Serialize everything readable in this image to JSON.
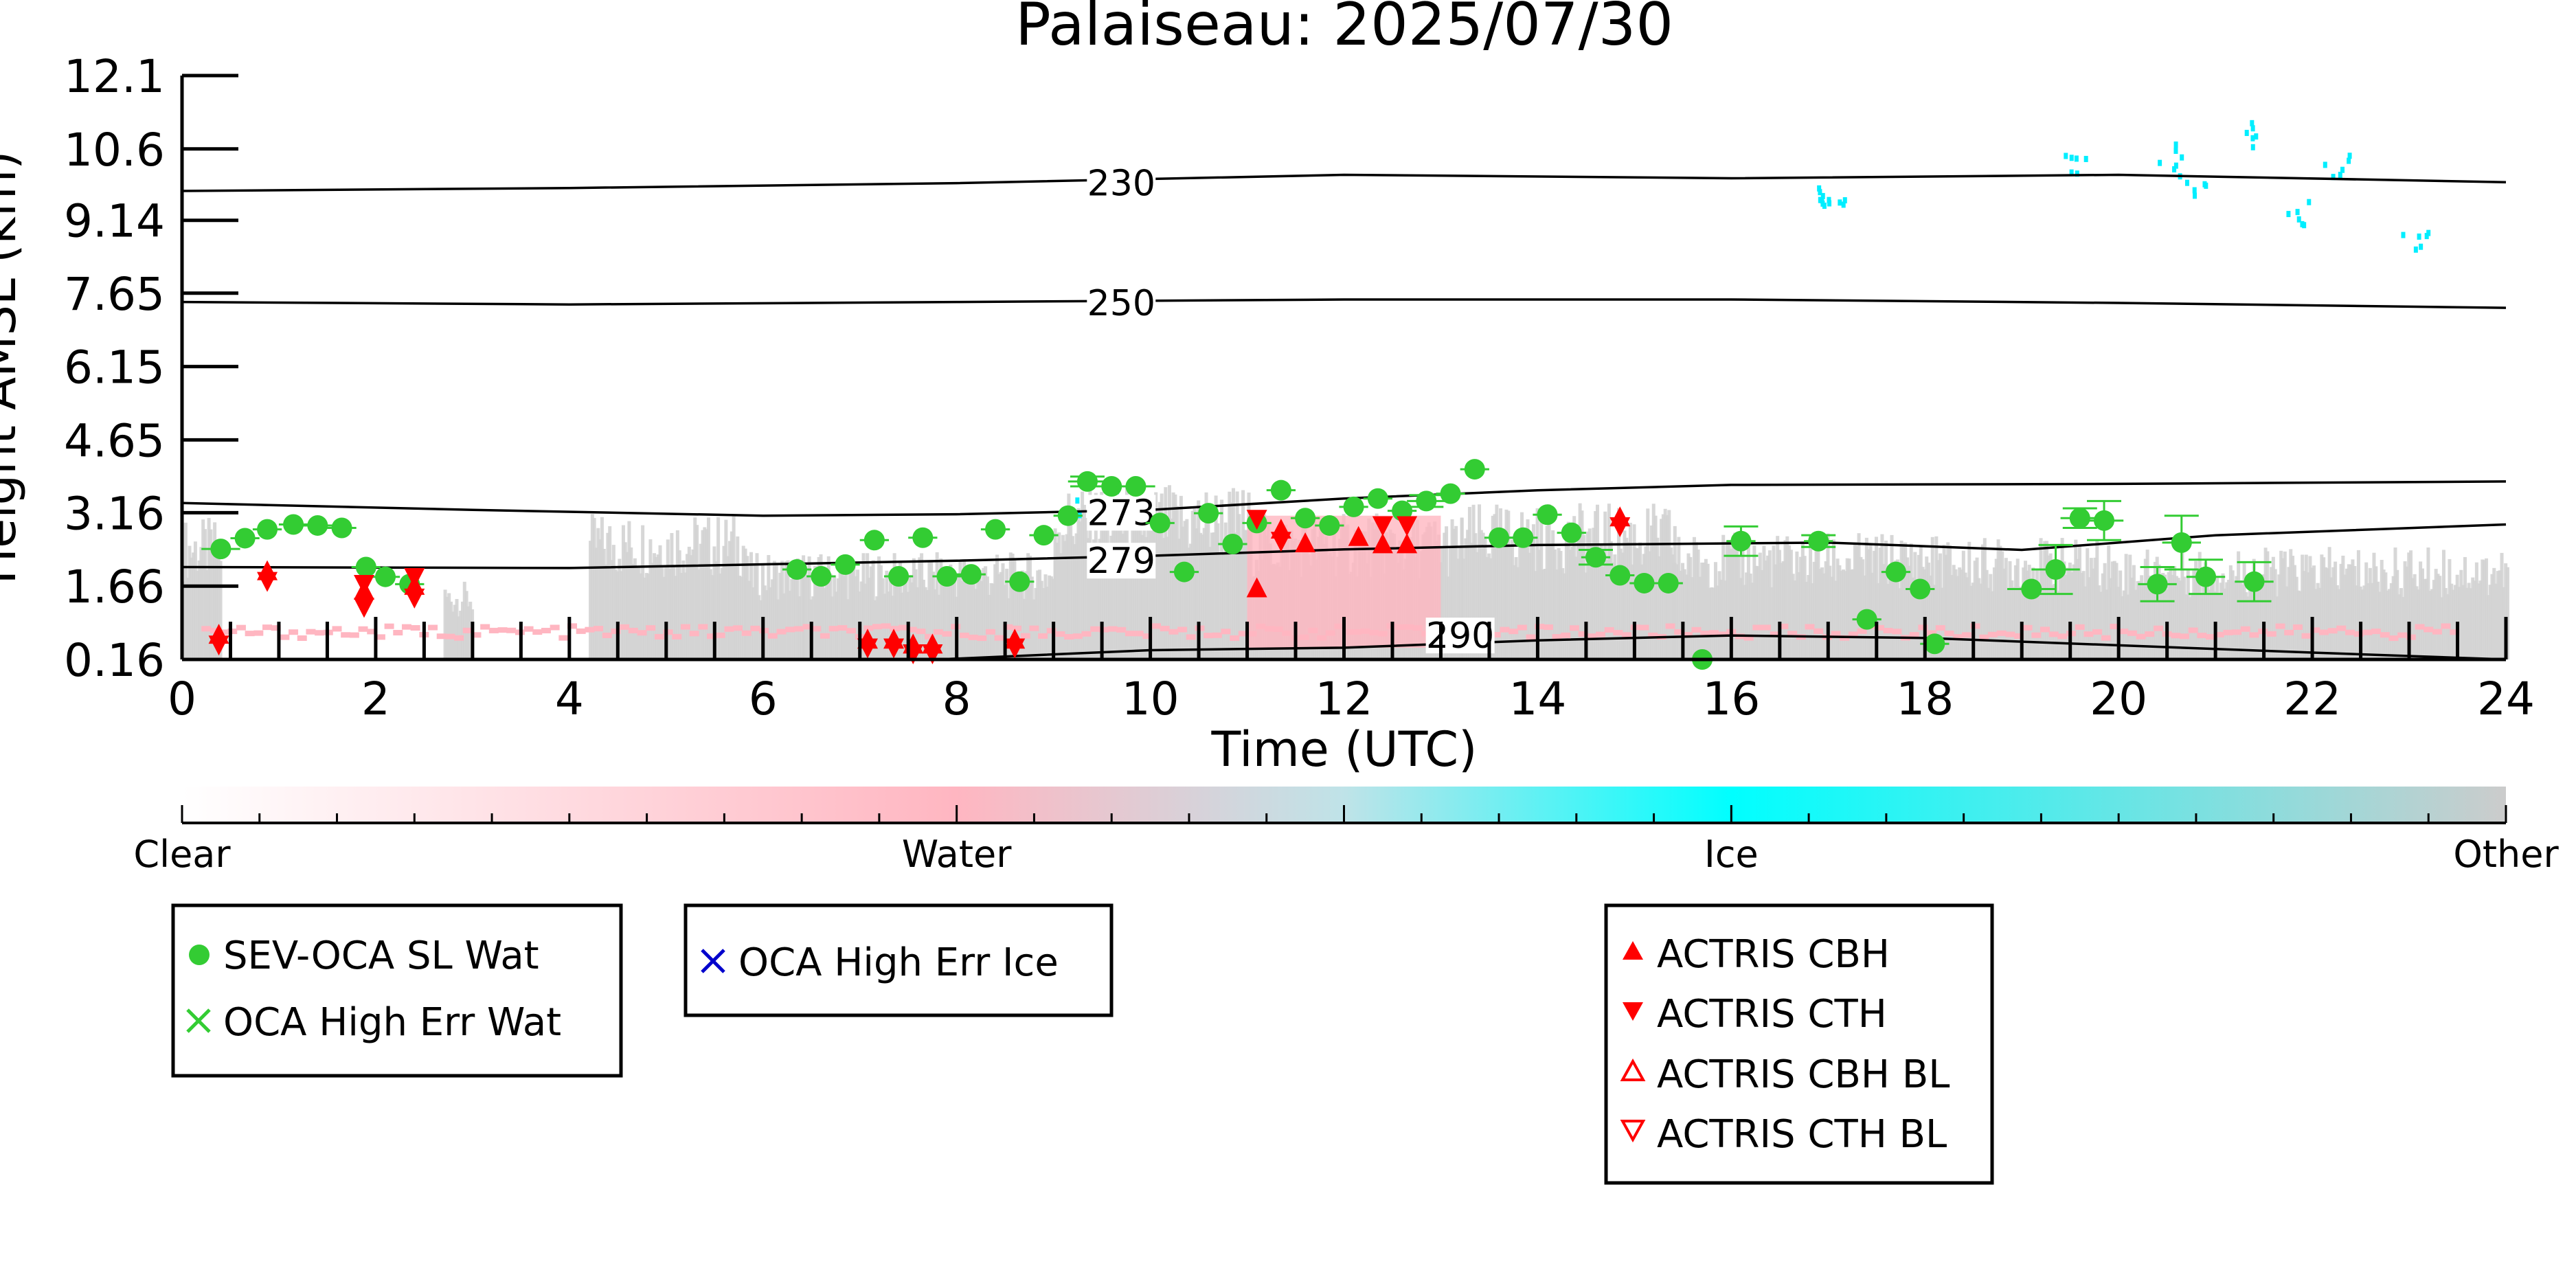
{
  "chart_data": {
    "type": "scatter",
    "title": "Palaiseau: 2025/07/30",
    "xlabel": "Time (UTC)",
    "ylabel": "Height AMSL (km)",
    "xlim": [
      0,
      24
    ],
    "ylim": [
      0.16,
      12.1
    ],
    "x_ticks": [
      "0",
      "2",
      "4",
      "6",
      "8",
      "10",
      "12",
      "14",
      "16",
      "18",
      "20",
      "22",
      "24"
    ],
    "y_ticks": [
      "0.16",
      "1.66",
      "3.16",
      "4.65",
      "6.15",
      "7.65",
      "9.14",
      "10.6",
      "12.1"
    ],
    "y_tick_values": [
      0.16,
      1.66,
      3.16,
      4.65,
      6.15,
      7.65,
      9.14,
      10.6,
      12.1
    ],
    "colorbar": {
      "labels": [
        "Clear",
        "Water",
        "Ice",
        "Other"
      ],
      "colors": [
        "#ffffff",
        "#ffb6c1",
        "#00ffff",
        "#cccccc"
      ]
    },
    "isotherms": [
      {
        "label": "230",
        "points": [
          [
            0,
            9.74
          ],
          [
            4,
            9.8
          ],
          [
            8,
            9.9
          ],
          [
            12,
            10.07
          ],
          [
            16,
            10.0
          ],
          [
            20,
            10.07
          ],
          [
            24,
            9.92
          ]
        ]
      },
      {
        "label": "250",
        "points": [
          [
            0,
            7.47
          ],
          [
            4,
            7.42
          ],
          [
            8,
            7.47
          ],
          [
            12,
            7.52
          ],
          [
            16,
            7.52
          ],
          [
            20,
            7.45
          ],
          [
            24,
            7.35
          ]
        ]
      },
      {
        "label": "273",
        "points": [
          [
            0,
            3.36
          ],
          [
            3,
            3.22
          ],
          [
            6,
            3.1
          ],
          [
            8,
            3.13
          ],
          [
            10,
            3.22
          ],
          [
            12,
            3.45
          ],
          [
            14,
            3.62
          ],
          [
            16,
            3.73
          ],
          [
            20,
            3.75
          ],
          [
            24,
            3.8
          ]
        ]
      },
      {
        "label": "279",
        "points": [
          [
            0,
            2.05
          ],
          [
            4,
            2.03
          ],
          [
            8,
            2.18
          ],
          [
            10,
            2.28
          ],
          [
            12,
            2.41
          ],
          [
            14,
            2.5
          ],
          [
            17,
            2.55
          ],
          [
            19,
            2.4
          ],
          [
            21,
            2.7
          ],
          [
            24,
            2.92
          ]
        ]
      },
      {
        "label": "290",
        "points": [
          [
            7.8,
            0.16
          ],
          [
            10,
            0.35
          ],
          [
            12,
            0.4
          ],
          [
            14,
            0.55
          ],
          [
            16,
            0.65
          ],
          [
            18,
            0.6
          ],
          [
            20,
            0.45
          ],
          [
            22,
            0.3
          ],
          [
            24,
            0.16
          ]
        ]
      }
    ],
    "series": [
      {
        "name": "SEV-OCA SL Wat",
        "color": "#33cc33",
        "marker": "circle",
        "points": [
          [
            0.4,
            2.42
          ],
          [
            0.65,
            2.64
          ],
          [
            0.88,
            2.82
          ],
          [
            1.15,
            2.92
          ],
          [
            1.4,
            2.9
          ],
          [
            1.65,
            2.85
          ],
          [
            1.9,
            2.05
          ],
          [
            2.1,
            1.85
          ],
          [
            2.35,
            1.7
          ],
          [
            6.35,
            2.0
          ],
          [
            6.6,
            1.86
          ],
          [
            6.85,
            2.1
          ],
          [
            7.15,
            2.6
          ],
          [
            7.4,
            1.86
          ],
          [
            7.65,
            2.65
          ],
          [
            7.9,
            1.86
          ],
          [
            8.15,
            1.9
          ],
          [
            8.4,
            2.82
          ],
          [
            8.65,
            1.75
          ],
          [
            8.9,
            2.7
          ],
          [
            9.15,
            3.1
          ],
          [
            9.35,
            3.8
          ],
          [
            9.6,
            3.7
          ],
          [
            9.85,
            3.7
          ],
          [
            10.1,
            2.95
          ],
          [
            10.35,
            1.95
          ],
          [
            10.6,
            3.15
          ],
          [
            10.85,
            2.52
          ],
          [
            11.1,
            2.95
          ],
          [
            11.35,
            3.62
          ],
          [
            11.6,
            3.05
          ],
          [
            11.85,
            2.9
          ],
          [
            12.1,
            3.28
          ],
          [
            12.35,
            3.45
          ],
          [
            12.6,
            3.2
          ],
          [
            12.85,
            3.4
          ],
          [
            13.1,
            3.55
          ],
          [
            13.35,
            4.05
          ],
          [
            13.6,
            2.65
          ],
          [
            13.85,
            2.65
          ],
          [
            14.1,
            3.12
          ],
          [
            14.35,
            2.75
          ],
          [
            14.6,
            2.25
          ],
          [
            14.85,
            1.88
          ],
          [
            15.1,
            1.72
          ],
          [
            15.35,
            1.72
          ],
          [
            15.7,
            0.16
          ],
          [
            16.1,
            2.58
          ],
          [
            16.9,
            2.58
          ],
          [
            17.4,
            0.98
          ],
          [
            17.7,
            1.95
          ],
          [
            17.95,
            1.6
          ],
          [
            18.1,
            0.48
          ],
          [
            19.1,
            1.6
          ],
          [
            19.35,
            2.0
          ],
          [
            19.6,
            3.05
          ],
          [
            19.85,
            3.0
          ],
          [
            20.4,
            1.7
          ],
          [
            20.65,
            2.55
          ],
          [
            20.9,
            1.85
          ],
          [
            21.4,
            1.75
          ]
        ],
        "xerr": [
          0.2,
          0.15,
          0.15,
          0.15,
          0.15,
          0.15,
          0.15,
          0.15,
          0.15,
          0.15,
          0.15,
          0.15,
          0.15,
          0.15,
          0.15,
          0.15,
          0.15,
          0.15,
          0.15,
          0.15,
          0.15,
          0.2,
          0.2,
          0.2,
          0.15,
          0.15,
          0.15,
          0.15,
          0.15,
          0.15,
          0.15,
          0.15,
          0.15,
          0.15,
          0.15,
          0.2,
          0.15,
          0.15,
          0.15,
          0.15,
          0.15,
          0.15,
          0.15,
          0.15,
          0.15,
          0.15,
          0.15,
          0.15,
          0.15,
          0.15,
          0.15,
          0.15,
          0.15,
          0.25,
          0.25,
          0.2,
          0.2,
          0.2,
          0.2,
          0.2,
          0.2
        ],
        "yerr": [
          0,
          0,
          0,
          0,
          0,
          0,
          0,
          0,
          0,
          0,
          0,
          0,
          0,
          0,
          0,
          0,
          0,
          0,
          0,
          0,
          0,
          0.1,
          0,
          0,
          0,
          0,
          0,
          0,
          0,
          0,
          0,
          0,
          0,
          0,
          0,
          0.12,
          0,
          0,
          0,
          0,
          0,
          0,
          0.15,
          0,
          0,
          0,
          0,
          0.3,
          0.12,
          0,
          0,
          0,
          0,
          0,
          0.5,
          0.2,
          0.4,
          0.35,
          0.55,
          0.35,
          0.4
        ]
      },
      {
        "name": "OCA High Err Wat",
        "color": "#33cc33",
        "marker": "x",
        "points": []
      },
      {
        "name": "OCA High Err Ice",
        "color": "#0000cc",
        "marker": "x",
        "points": []
      },
      {
        "name": "ACTRIS CBH",
        "color": "#ff0000",
        "marker": "triangle-up",
        "points": [
          [
            0.38,
            0.65
          ],
          [
            0.88,
            1.95
          ],
          [
            1.88,
            1.55
          ],
          [
            2.4,
            1.65
          ],
          [
            7.08,
            0.55
          ],
          [
            7.35,
            0.55
          ],
          [
            7.55,
            0.45
          ],
          [
            7.75,
            0.45
          ],
          [
            8.6,
            0.55
          ],
          [
            11.1,
            1.6
          ],
          [
            11.35,
            2.8
          ],
          [
            11.6,
            2.52
          ],
          [
            12.15,
            2.65
          ],
          [
            12.4,
            2.5
          ],
          [
            12.65,
            2.5
          ],
          [
            14.85,
            3.05
          ]
        ]
      },
      {
        "name": "ACTRIS CTH",
        "color": "#ff0000",
        "marker": "triangle-down",
        "points": [
          [
            0.38,
            0.48
          ],
          [
            0.88,
            1.78
          ],
          [
            1.88,
            1.25
          ],
          [
            1.88,
            1.72
          ],
          [
            2.4,
            1.44
          ],
          [
            2.4,
            1.86
          ],
          [
            7.08,
            0.42
          ],
          [
            7.35,
            0.42
          ],
          [
            7.55,
            0.3
          ],
          [
            7.75,
            0.3
          ],
          [
            8.6,
            0.42
          ],
          [
            11.1,
            3.05
          ],
          [
            11.35,
            2.6
          ],
          [
            12.4,
            2.92
          ],
          [
            12.65,
            2.92
          ],
          [
            14.85,
            2.9
          ]
        ]
      },
      {
        "name": "ACTRIS CBH BL",
        "color": "#ff0000",
        "marker": "triangle-up-open",
        "points": []
      },
      {
        "name": "ACTRIS CTH BL",
        "color": "#ff0000",
        "marker": "triangle-down-open",
        "points": []
      }
    ],
    "legends": [
      {
        "entries": [
          "SEV-OCA SL Wat",
          "OCA High Err Wat"
        ]
      },
      {
        "entries": [
          "OCA High Err Ice"
        ]
      },
      {
        "entries": [
          "ACTRIS CBH",
          "ACTRIS CTH",
          "ACTRIS CBH BL",
          "ACTRIS CTH BL"
        ]
      }
    ],
    "grid": false
  }
}
